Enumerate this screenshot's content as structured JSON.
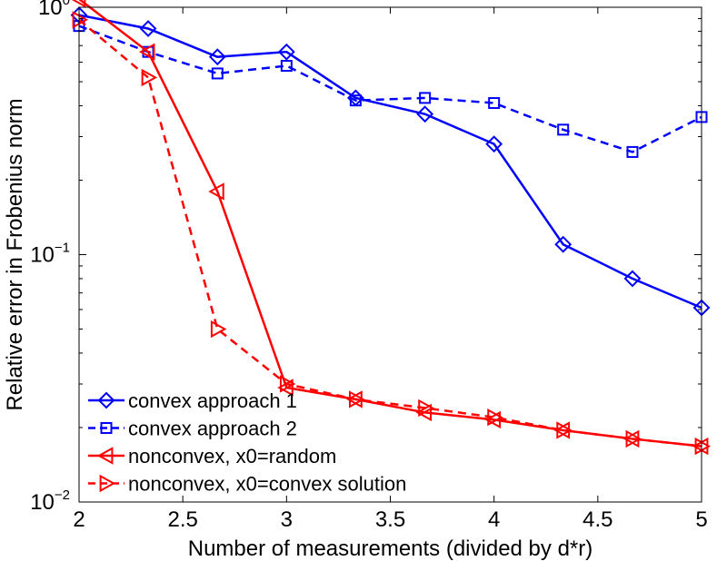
{
  "chart_data": {
    "type": "line",
    "title": "",
    "xlabel": "Number of measurements (divided by d*r)",
    "ylabel": "Relative error in Frobenius norm",
    "xlim": [
      2,
      5
    ],
    "ylim": [
      0.01,
      1
    ],
    "yscale": "log",
    "grid": false,
    "legend_position": "bottom-left",
    "x_ticks": [
      "2",
      "2.5",
      "3",
      "3.5",
      "4",
      "4.5",
      "5"
    ],
    "y_ticks": [
      {
        "base": "10",
        "exp": "0"
      },
      {
        "base": "10",
        "exp": "−1"
      },
      {
        "base": "10",
        "exp": "−2"
      }
    ],
    "x": [
      2,
      2.333,
      2.667,
      3,
      3.333,
      3.667,
      4,
      4.333,
      4.667,
      5
    ],
    "series": [
      {
        "name": "convex approach 1",
        "color": "#0000ff",
        "line": "solid",
        "marker": "diamond",
        "values": [
          0.93,
          0.82,
          0.63,
          0.66,
          0.43,
          0.37,
          0.28,
          0.11,
          0.08,
          0.061
        ]
      },
      {
        "name": "convex approach 2",
        "color": "#0000ff",
        "line": "dashed",
        "marker": "square",
        "values": [
          0.84,
          0.66,
          0.54,
          0.58,
          0.42,
          0.43,
          0.41,
          0.32,
          0.26,
          0.36
        ]
      },
      {
        "name": "nonconvex, x0=random",
        "color": "#ff0000",
        "line": "solid",
        "marker": "triangle-left",
        "values": [
          1.08,
          0.66,
          0.18,
          0.029,
          0.026,
          0.023,
          0.0215,
          0.0195,
          0.018,
          0.0168
        ]
      },
      {
        "name": "nonconvex, x0=convex solution",
        "color": "#ff0000",
        "line": "dashed",
        "marker": "triangle-right",
        "values": [
          0.89,
          0.52,
          0.05,
          0.03,
          0.026,
          0.024,
          0.022,
          0.0195,
          0.018,
          0.0168
        ]
      }
    ]
  }
}
